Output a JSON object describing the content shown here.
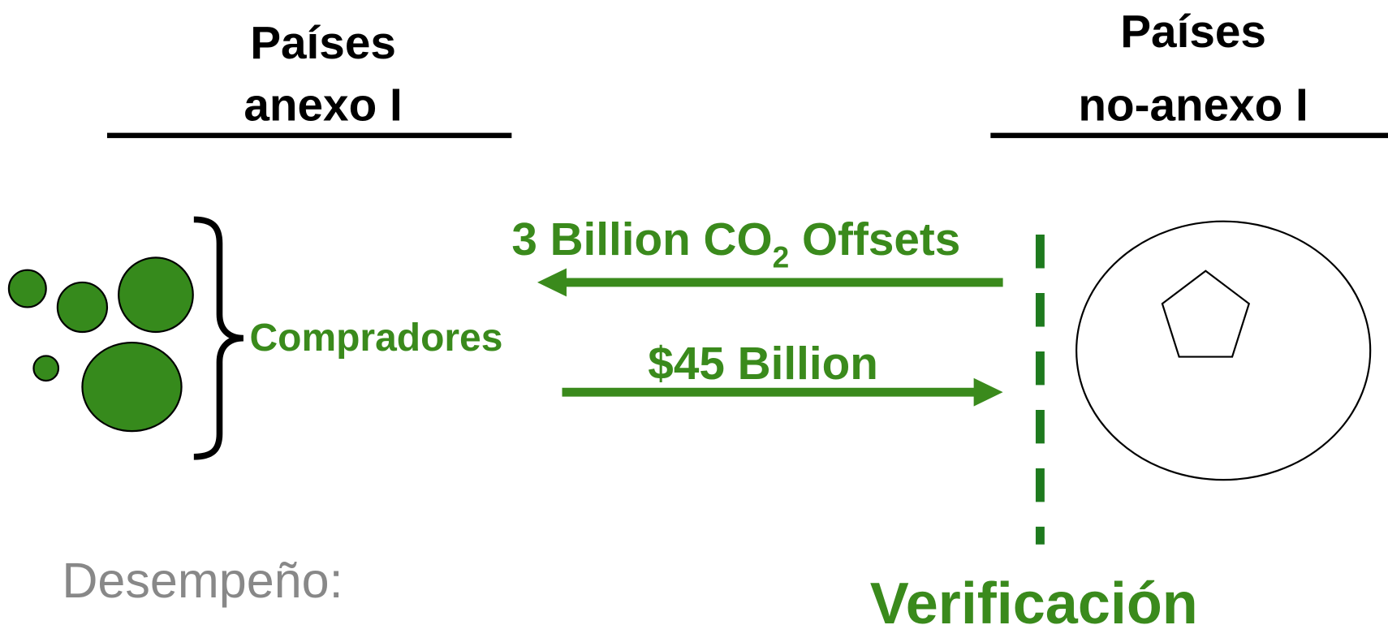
{
  "left_header": {
    "line1": "Países",
    "line2": "anexo I"
  },
  "right_header": {
    "line1": "Países",
    "line2": "no-anexo I"
  },
  "buyers_label": "Compradores",
  "offsets_label": {
    "before": "3 Billion CO",
    "sub": "2",
    "after": " Offsets"
  },
  "payment_label": "$45 Billion",
  "performance_label": "Desempeño:",
  "verification_label": "Verificación"
}
